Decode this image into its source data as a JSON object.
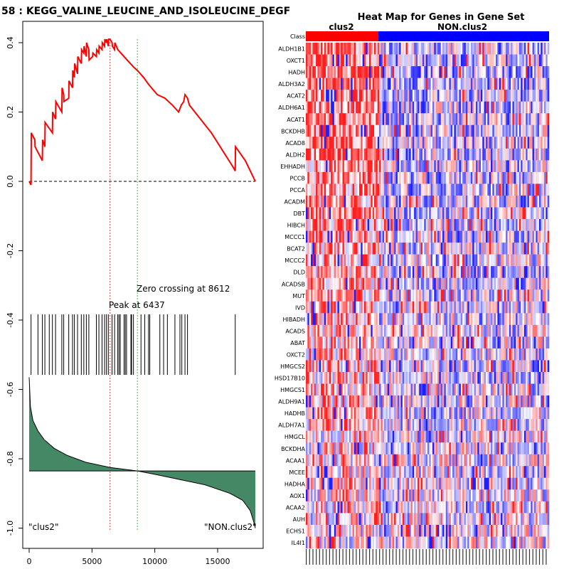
{
  "chart_data": [
    {
      "type": "line",
      "title": "58 : KEGG_VALINE_LEUCINE_AND_ISOLEUCINE_DEGF",
      "xlabel": "",
      "ylabel": "",
      "xlim": [
        -1000,
        19000
      ],
      "ylim": [
        -1.05,
        0.47
      ],
      "xticks": [
        0,
        5000,
        10000,
        15000
      ],
      "yticks": [
        0.4,
        0.2,
        0.0,
        -0.2,
        -0.4,
        -0.6,
        -0.8,
        -1.0
      ],
      "xtick_labels": [
        "0",
        "5000",
        "10000",
        "15000"
      ],
      "ytick_labels": [
        "0.4",
        "0.2",
        "0.0",
        "-0.2",
        "-0.4",
        "-0.6",
        "-0.8",
        "-1.0"
      ],
      "series": [
        {
          "name": "running enrichment score",
          "color": "#ff0000",
          "x": [
            0,
            150,
            170,
            450,
            470,
            1050,
            1070,
            1250,
            1270,
            1850,
            1870,
            2100,
            2120,
            2600,
            2620,
            2750,
            2770,
            3150,
            3170,
            3450,
            3470,
            3600,
            3620,
            3850,
            3870,
            4150,
            4170,
            4350,
            4370,
            4550,
            4570,
            4750,
            4770,
            5050,
            5070,
            5350,
            5370,
            5550,
            5570,
            5800,
            5820,
            6000,
            6020,
            6150,
            6170,
            6300,
            6320,
            6437,
            6600,
            6620,
            6800,
            6820,
            7050,
            7800,
            8300,
            8612,
            9100,
            9500,
            10200,
            10800,
            11400,
            11900,
            12100,
            12300,
            12400,
            12600,
            12750,
            14500,
            16250,
            16400,
            16420,
            17200,
            18000
          ],
          "y": [
            0.0,
            -0.01,
            0.14,
            0.12,
            0.1,
            0.06,
            0.12,
            0.1,
            0.17,
            0.14,
            0.2,
            0.18,
            0.23,
            0.2,
            0.27,
            0.25,
            0.23,
            0.24,
            0.29,
            0.27,
            0.32,
            0.3,
            0.34,
            0.31,
            0.36,
            0.34,
            0.38,
            0.37,
            0.39,
            0.36,
            0.4,
            0.38,
            0.35,
            0.36,
            0.37,
            0.36,
            0.38,
            0.37,
            0.39,
            0.38,
            0.4,
            0.39,
            0.41,
            0.4,
            0.41,
            0.39,
            0.41,
            0.41,
            0.4,
            0.39,
            0.38,
            0.4,
            0.38,
            0.35,
            0.33,
            0.32,
            0.3,
            0.28,
            0.25,
            0.24,
            0.22,
            0.2,
            0.22,
            0.23,
            0.25,
            0.24,
            0.22,
            0.14,
            0.04,
            0.03,
            0.1,
            0.06,
            0.0
          ]
        },
        {
          "name": "ranked list metric",
          "color": "#448866",
          "baseline": -0.835,
          "x": [
            0,
            100,
            300,
            700,
            1200,
            2000,
            3000,
            4500,
            6437,
            8612,
            10000,
            12000,
            14000,
            16000,
            17000,
            17600,
            17900,
            18000
          ],
          "y": [
            -0.565,
            -0.65,
            -0.69,
            -0.72,
            -0.745,
            -0.77,
            -0.79,
            -0.81,
            -0.825,
            -0.835,
            -0.845,
            -0.86,
            -0.875,
            -0.9,
            -0.92,
            -0.95,
            -0.985,
            -1.0
          ]
        }
      ],
      "peak_x": 6437,
      "zero_crossing_x": 8612,
      "zero_crossing_label": "Zero crossing at 8612",
      "peak_label": "Peak at 6437",
      "hits": [
        150,
        700,
        1050,
        1250,
        1600,
        1850,
        2100,
        2600,
        2750,
        3150,
        3450,
        3600,
        3850,
        4150,
        4350,
        4550,
        4750,
        5350,
        5550,
        5800,
        6000,
        6150,
        6300,
        6600,
        6800,
        7050,
        7150,
        7250,
        7550,
        7650,
        7750,
        8100,
        8150,
        8300,
        8900,
        9200,
        9500,
        9600,
        10400,
        10700,
        11000,
        11600,
        12000,
        12150,
        12400,
        12600,
        16400
      ],
      "left_label": "\"clus2\"",
      "right_label": "\"NON.clus2\""
    },
    {
      "type": "heatmap",
      "title": "Heat Map for Genes in Gene Set",
      "class_row_label": "Class",
      "class_labels": [
        "clus2",
        "NON.clus2"
      ],
      "class_colors": [
        "#ff0000",
        "#0000ff"
      ],
      "genes": [
        "ALDH1B1",
        "OXCT1",
        "HADH",
        "ALDH3A2",
        "ACAT2",
        "ALDH6A1",
        "ACAT1",
        "BCKDHB",
        "ACAD8",
        "ALDH2",
        "EHHADH",
        "PCCB",
        "PCCA",
        "ACADM",
        "DBT",
        "HIBCH",
        "MCCC1",
        "BCAT2",
        "MCCC2",
        "DLD",
        "ACADSB",
        "MUT",
        "IVD",
        "HIBADH",
        "ACADS",
        "ABAT",
        "OXCT2",
        "HMGCS2",
        "HSD17B10",
        "HMGCS1",
        "ALDH9A1",
        "HADHB",
        "ALDH7A1",
        "HMGCL",
        "BCKDHA",
        "ACAA1",
        "MCEE",
        "HADHA",
        "AOX1",
        "ACAA2",
        "AUH",
        "ECHS1",
        "IL4I1"
      ],
      "n_clus2_samples": 40,
      "n_nonclus2_samples": 106
    }
  ]
}
